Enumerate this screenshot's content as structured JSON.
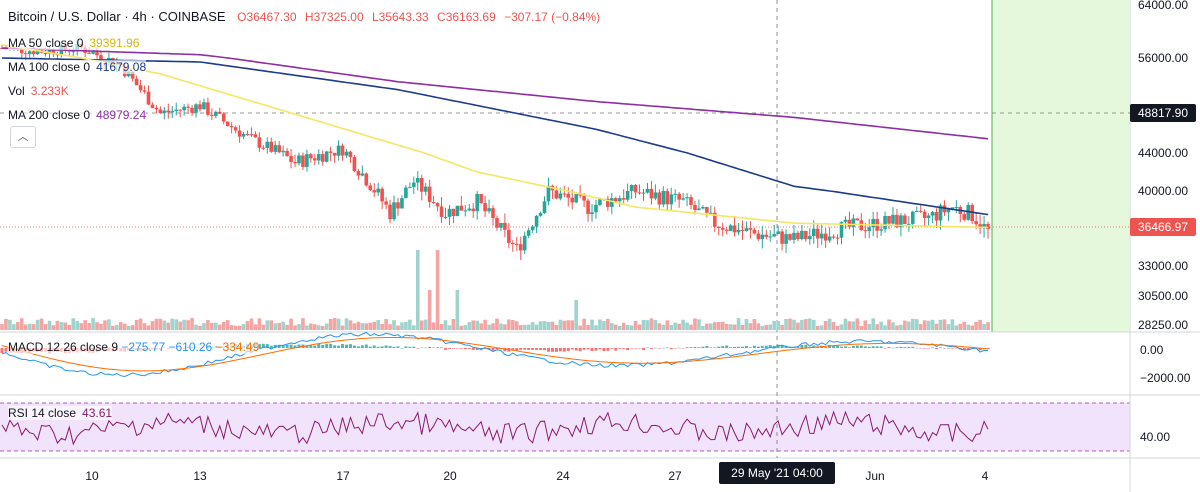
{
  "header": {
    "title": "Bitcoin / U.S. Dollar",
    "interval": "4h",
    "exchange": "COINBASE",
    "open": "O36467.30",
    "high": "H37325.00",
    "low": "L35643.33",
    "close": "C36163.69",
    "change": "−307.17 (−0.84%)"
  },
  "legend": {
    "ma50": {
      "label": "MA 50 close 0",
      "value": "39391.96",
      "color": "#f5e663"
    },
    "ma100": {
      "label": "MA 100 close 0",
      "value": "41679.08",
      "color": "#1e3c8c"
    },
    "vol": {
      "label": "Vol",
      "value": "3.233K"
    },
    "ma200": {
      "label": "MA 200 close 0",
      "value": "48979.24",
      "color": "#8e2ea3"
    },
    "macd": {
      "label": "MACD 12 26 close 9",
      "v1": "−275.77",
      "v2": "−610.26",
      "v3": "−334.49"
    },
    "rsi": {
      "label": "RSI 14 close",
      "value": "43.61",
      "color": "#8a1a6e"
    }
  },
  "price_tags": {
    "crosshair": "48817.90",
    "last": "36466.97"
  },
  "colors": {
    "up": "#26a69a",
    "down": "#ef5350",
    "vol_up": "#9ed4cd",
    "vol_down": "#f4a5a3",
    "future_zone": "#e6f8dc",
    "macd_line": "#2196f3",
    "signal_line": "#ff6d00",
    "rsi_band": "#f0e3fb"
  },
  "crosshair_label": "29 May '21  04:00",
  "chart_data": {
    "type": "candlestick",
    "x_ticks": [
      "10",
      "13",
      "17",
      "20",
      "24",
      "27",
      "Jun",
      "4"
    ],
    "price_axis": [
      "64000.00",
      "56000.00",
      "44000.00",
      "40000.00",
      "33000.00",
      "30500.00",
      "28250.00"
    ],
    "macd_axis": [
      "0.00",
      "−2000.00"
    ],
    "rsi_axis": [
      "40.00"
    ],
    "anchors": [
      [
        0,
        57500
      ],
      [
        10,
        57000
      ],
      [
        20,
        57500
      ],
      [
        30,
        55000
      ],
      [
        40,
        49000
      ],
      [
        50,
        50000
      ],
      [
        62,
        46000
      ],
      [
        74,
        43000
      ],
      [
        86,
        44500
      ],
      [
        98,
        38000
      ],
      [
        104,
        41000
      ],
      [
        112,
        38000
      ],
      [
        120,
        39000
      ],
      [
        130,
        34500
      ],
      [
        138,
        40000
      ],
      [
        148,
        38500
      ],
      [
        160,
        40000
      ],
      [
        172,
        39000
      ],
      [
        180,
        37000
      ],
      [
        190,
        36000
      ],
      [
        200,
        35500
      ],
      [
        212,
        36500
      ],
      [
        222,
        37000
      ],
      [
        234,
        37500
      ],
      [
        240,
        38500
      ],
      [
        245,
        37800
      ],
      [
        249,
        36200
      ]
    ],
    "ma50": [
      [
        0,
        58000
      ],
      [
        40,
        54000
      ],
      [
        80,
        48000
      ],
      [
        120,
        42000
      ],
      [
        160,
        38500
      ],
      [
        200,
        37000
      ],
      [
        249,
        36600
      ]
    ],
    "ma100": [
      [
        0,
        56000
      ],
      [
        50,
        55500
      ],
      [
        100,
        52000
      ],
      [
        150,
        47000
      ],
      [
        200,
        40500
      ],
      [
        249,
        37800
      ]
    ],
    "ma200": [
      [
        0,
        57500
      ],
      [
        50,
        56500
      ],
      [
        100,
        53000
      ],
      [
        150,
        50500
      ],
      [
        200,
        48500
      ],
      [
        249,
        45800
      ]
    ]
  }
}
